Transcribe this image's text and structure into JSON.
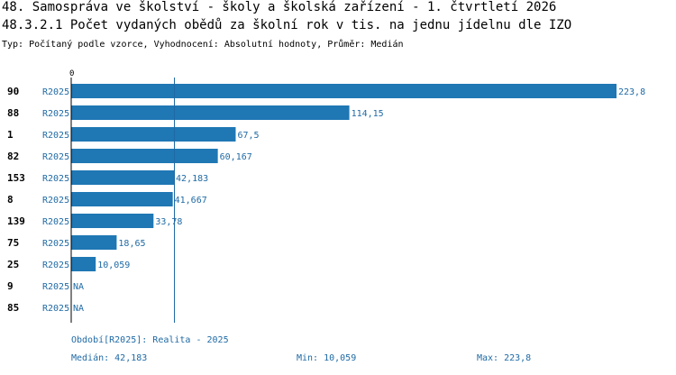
{
  "header": {
    "title": "48. Samospráva ve školství - školy a školská zařízení - 1. čtvrtletí 2026",
    "subtitle": "48.3.2.1 Počet vydaných obědů za školní rok v tis. na jednu jídelnu dle IZO",
    "meta": "Typ: Počítaný podle vzorce, Vyhodnocení: Absolutní hodnoty, Průměr: Medián"
  },
  "colors": {
    "bar": "#1f77b4",
    "text_blue": "#1f6aa5",
    "median_line": "#1f6aa5",
    "axis": "#000000"
  },
  "chart_data": {
    "type": "bar",
    "orientation": "horizontal",
    "axis_zero_label": "0",
    "xlim": [
      0,
      223.8
    ],
    "median": 42.183,
    "grid": false,
    "legend": "none",
    "rows": [
      {
        "category": "90",
        "series": "R2025",
        "value": 223.8,
        "label": "223,8"
      },
      {
        "category": "88",
        "series": "R2025",
        "value": 114.15,
        "label": "114,15"
      },
      {
        "category": "1",
        "series": "R2025",
        "value": 67.5,
        "label": "67,5"
      },
      {
        "category": "82",
        "series": "R2025",
        "value": 60.167,
        "label": "60,167"
      },
      {
        "category": "153",
        "series": "R2025",
        "value": 42.183,
        "label": "42,183"
      },
      {
        "category": "8",
        "series": "R2025",
        "value": 41.667,
        "label": "41,667"
      },
      {
        "category": "139",
        "series": "R2025",
        "value": 33.78,
        "label": "33,78"
      },
      {
        "category": "75",
        "series": "R2025",
        "value": 18.65,
        "label": "18,65"
      },
      {
        "category": "25",
        "series": "R2025",
        "value": 10.059,
        "label": "10,059"
      },
      {
        "category": "9",
        "series": "R2025",
        "value": null,
        "label": "NA"
      },
      {
        "category": "85",
        "series": "R2025",
        "value": null,
        "label": "NA"
      }
    ]
  },
  "footer": {
    "period": "Období[R2025]: Realita - 2025",
    "median": "Medián: 42,183",
    "min": "Min: 10,059",
    "max": "Max: 223,8"
  }
}
